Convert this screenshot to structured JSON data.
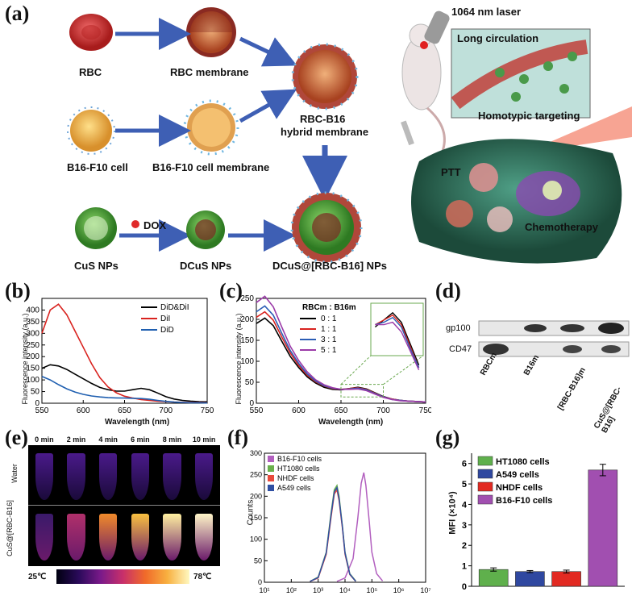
{
  "panels": {
    "a": "(a)",
    "b": "(b)",
    "c": "(c)",
    "d": "(d)",
    "e": "(e)",
    "f": "(f)",
    "g": "(g)"
  },
  "panel_a": {
    "labels": {
      "rbc": "RBC",
      "rbc_membrane": "RBC membrane",
      "b16_cell": "B16-F10 cell",
      "b16_membrane": "B16-F10 cell membrane",
      "hybrid_1": "RBC-B16",
      "hybrid_2": "hybrid membrane",
      "cus": "CuS NPs",
      "dox": "DOX",
      "dcus": "DCuS NPs",
      "dcus_hybrid": "DCuS@[RBC-B16] NPs",
      "laser": "1064 nm laser",
      "long_circulation": "Long circulation",
      "homotypic": "Homotypic targeting",
      "ptt": "PTT",
      "chemo": "Chemotherapy"
    }
  },
  "panel_b": {
    "ylabel": "Fluorescence intensity (a.u.)",
    "xlabel": "Wavelength (nm)",
    "legend": [
      "DiD&DiI",
      "DiI",
      "DiD"
    ]
  },
  "panel_c": {
    "ylabel": "Fluorescence intensity (a.u.)",
    "xlabel": "Wavelength (nm)",
    "legend_title": "RBCm : B16m",
    "legend": [
      "0 : 1",
      "1 : 1",
      "3 : 1",
      "5 : 1"
    ]
  },
  "panel_d": {
    "rows": [
      "gp100",
      "CD47"
    ],
    "lanes": [
      "RBCm",
      "B16m",
      "[RBC-B16]m",
      "CuS@[RBC-B16]"
    ]
  },
  "panel_e": {
    "times": [
      "0 min",
      "2 min",
      "4 min",
      "6 min",
      "8 min",
      "10 min"
    ],
    "rows": [
      "Water",
      "CuS@[RBC-B16]"
    ],
    "scale_min": "25℃",
    "scale_max": "78℃"
  },
  "panel_f": {
    "ylabel": "Counts",
    "legend": [
      "B16-F10 cells",
      "HT1080 cells",
      "NHDF cells",
      "A549 cells"
    ]
  },
  "panel_g": {
    "ylabel": "MFI (×10⁴)",
    "legend": [
      "HT1080 cells",
      "A549 cells",
      "NHDF cells",
      "B16-F10 cells"
    ]
  },
  "chart_data": [
    {
      "panel": "b",
      "type": "line",
      "xlabel": "Wavelength (nm)",
      "ylabel": "Fluorescence intensity (a.u.)",
      "xlim": [
        550,
        750
      ],
      "ylim": [
        0,
        450
      ],
      "xticks": [
        550,
        600,
        650,
        700,
        750
      ],
      "yticks": [
        0,
        50,
        100,
        150,
        200,
        250,
        300,
        350,
        400
      ],
      "series": [
        {
          "name": "DiD&DiI",
          "color": "#000000",
          "x": [
            550,
            560,
            570,
            580,
            590,
            600,
            610,
            620,
            630,
            640,
            650,
            660,
            670,
            680,
            690,
            700,
            710,
            720,
            730,
            740,
            750
          ],
          "y": [
            150,
            165,
            160,
            145,
            125,
            105,
            85,
            68,
            58,
            52,
            52,
            58,
            64,
            58,
            44,
            28,
            18,
            12,
            9,
            7,
            6
          ]
        },
        {
          "name": "DiI",
          "color": "#d9231f",
          "x": [
            550,
            560,
            570,
            580,
            590,
            600,
            610,
            620,
            630,
            640,
            650,
            660,
            670,
            680,
            690,
            700,
            710,
            720,
            730,
            740,
            750
          ],
          "y": [
            300,
            400,
            425,
            380,
            310,
            240,
            170,
            110,
            70,
            45,
            30,
            22,
            16,
            12,
            9,
            7,
            5,
            4,
            3,
            3,
            2
          ]
        },
        {
          "name": "DiD",
          "color": "#1f5fb0",
          "x": [
            550,
            560,
            570,
            580,
            590,
            600,
            610,
            620,
            630,
            640,
            650,
            660,
            670,
            680,
            690,
            700,
            710,
            720,
            730,
            740,
            750
          ],
          "y": [
            115,
            100,
            80,
            62,
            48,
            38,
            31,
            27,
            24,
            23,
            22,
            21,
            20,
            17,
            12,
            8,
            5,
            3,
            2,
            2,
            1
          ]
        }
      ]
    },
    {
      "panel": "c",
      "type": "line",
      "xlabel": "Wavelength (nm)",
      "ylabel": "Fluorescence intensity (a.u.)",
      "xlim": [
        550,
        750
      ],
      "ylim": [
        0,
        250
      ],
      "xticks": [
        550,
        600,
        650,
        700,
        750
      ],
      "yticks": [
        0,
        50,
        100,
        150,
        200,
        250
      ],
      "series": [
        {
          "name": "0 : 1",
          "color": "#000000",
          "x": [
            550,
            560,
            570,
            580,
            590,
            600,
            610,
            620,
            630,
            640,
            650,
            660,
            670,
            680,
            690,
            700,
            710,
            720,
            730,
            740,
            750
          ],
          "y": [
            190,
            203,
            185,
            148,
            112,
            85,
            63,
            48,
            38,
            33,
            32,
            35,
            38,
            34,
            25,
            16,
            10,
            7,
            5,
            4,
            3
          ]
        },
        {
          "name": "1 : 1",
          "color": "#d9231f",
          "x": [
            550,
            560,
            570,
            580,
            590,
            600,
            610,
            620,
            630,
            640,
            650,
            660,
            670,
            680,
            690,
            700,
            710,
            720,
            730,
            740,
            750
          ],
          "y": [
            205,
            218,
            198,
            158,
            120,
            90,
            67,
            51,
            41,
            35,
            33,
            35,
            37,
            33,
            24,
            15,
            10,
            7,
            5,
            4,
            3
          ]
        },
        {
          "name": "3 : 1",
          "color": "#2b5db5",
          "x": [
            550,
            560,
            570,
            580,
            590,
            600,
            610,
            620,
            630,
            640,
            650,
            660,
            670,
            680,
            690,
            700,
            710,
            720,
            730,
            740,
            750
          ],
          "y": [
            218,
            232,
            210,
            167,
            126,
            95,
            70,
            53,
            42,
            36,
            33,
            34,
            36,
            32,
            23,
            15,
            9,
            7,
            5,
            4,
            3
          ]
        },
        {
          "name": "5 : 1",
          "color": "#9b3aa8",
          "x": [
            550,
            560,
            570,
            580,
            590,
            600,
            610,
            620,
            630,
            640,
            650,
            660,
            670,
            680,
            690,
            700,
            710,
            720,
            730,
            740,
            750
          ],
          "y": [
            240,
            255,
            230,
            182,
            136,
            102,
            75,
            56,
            44,
            37,
            33,
            33,
            34,
            30,
            22,
            14,
            9,
            6,
            5,
            4,
            3
          ]
        }
      ]
    },
    {
      "panel": "f",
      "type": "line",
      "ylabel": "Counts",
      "xscale": "log",
      "xlim": [
        10,
        10000000
      ],
      "ylim": [
        0,
        300
      ],
      "xticks": [
        "10¹",
        "10²",
        "10³",
        "10⁴",
        "10⁵",
        "10⁶",
        "10⁷"
      ],
      "yticks": [
        0,
        50,
        100,
        150,
        200,
        250,
        300
      ],
      "series": [
        {
          "name": "B16-F10 cells",
          "color": "#b25fbf",
          "x": [
            5000,
            10000,
            20000,
            30000,
            40000,
            50000,
            60000,
            80000,
            100000,
            150000,
            250000
          ],
          "y": [
            2,
            10,
            55,
            150,
            230,
            255,
            225,
            140,
            70,
            20,
            3
          ]
        },
        {
          "name": "HT1080 cells",
          "color": "#6ab04c",
          "x": [
            500,
            1000,
            2000,
            3000,
            4000,
            5000,
            6000,
            8000,
            10000,
            15000,
            25000
          ],
          "y": [
            2,
            12,
            70,
            160,
            215,
            225,
            200,
            130,
            70,
            20,
            3
          ]
        },
        {
          "name": "NHDF cells",
          "color": "#e84a3c",
          "x": [
            500,
            1000,
            2000,
            3000,
            4000,
            5000,
            6000,
            8000,
            10000,
            15000,
            25000
          ],
          "y": [
            2,
            10,
            65,
            150,
            205,
            215,
            190,
            125,
            65,
            18,
            2
          ]
        },
        {
          "name": "A549 cells",
          "color": "#2f4fa3",
          "x": [
            500,
            1000,
            2000,
            3000,
            4000,
            5000,
            6000,
            8000,
            10000,
            15000,
            25000
          ],
          "y": [
            2,
            11,
            68,
            155,
            210,
            220,
            195,
            128,
            68,
            19,
            2
          ]
        }
      ]
    },
    {
      "panel": "g",
      "type": "bar",
      "ylabel": "MFI (×10⁴)",
      "ylim": [
        0,
        6.5
      ],
      "yticks": [
        0,
        1,
        2,
        3,
        4,
        5,
        6
      ],
      "categories": [
        "HT1080 cells",
        "A549 cells",
        "NHDF cells",
        "B16-F10 cells"
      ],
      "values": [
        0.82,
        0.72,
        0.72,
        5.68
      ],
      "errors": [
        0.08,
        0.05,
        0.07,
        0.28
      ],
      "colors": [
        "#5fb04c",
        "#2f48a0",
        "#e22a22",
        "#a14fb0"
      ]
    }
  ]
}
